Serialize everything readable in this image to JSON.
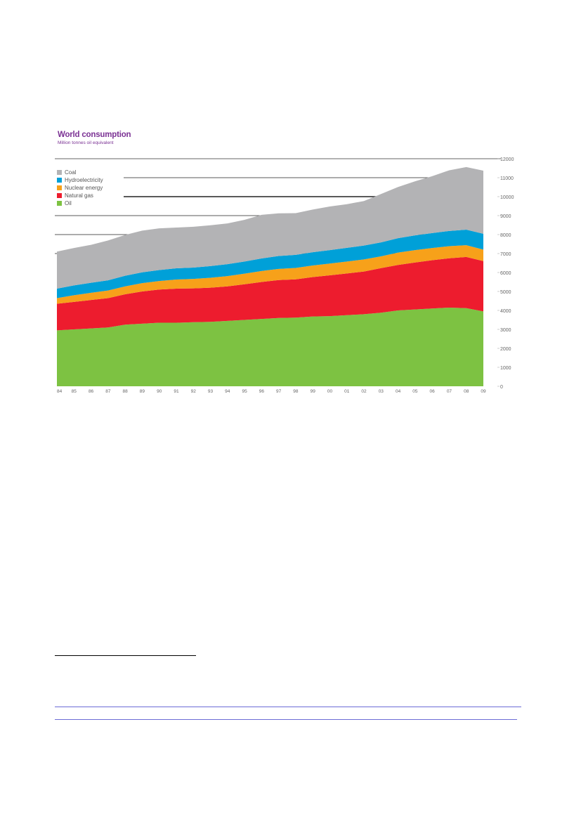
{
  "chart_data": {
    "type": "area",
    "stacked": true,
    "title": "World consumption",
    "subtitle": "Million tonnes oil equivalent",
    "x": [
      "84",
      "85",
      "86",
      "87",
      "88",
      "89",
      "90",
      "91",
      "92",
      "93",
      "94",
      "95",
      "96",
      "97",
      "98",
      "99",
      "00",
      "01",
      "02",
      "03",
      "04",
      "05",
      "06",
      "07",
      "08",
      "09"
    ],
    "ylim": [
      0,
      12000
    ],
    "yticks": [
      0,
      1000,
      2000,
      3000,
      4000,
      5000,
      6000,
      7000,
      8000,
      9000,
      10000,
      11000,
      12000
    ],
    "grid": "partial horizontal lines",
    "legend_position": "top-left",
    "series": [
      {
        "name": "Oil",
        "color": "#7dc242",
        "values": [
          2950,
          3000,
          3050,
          3100,
          3250,
          3300,
          3350,
          3350,
          3380,
          3400,
          3450,
          3500,
          3550,
          3600,
          3620,
          3680,
          3700,
          3750,
          3800,
          3880,
          4000,
          4050,
          4100,
          4150,
          4120,
          3950
        ]
      },
      {
        "name": "Natural gas",
        "color": "#ed1c2e",
        "values": [
          1400,
          1450,
          1500,
          1550,
          1600,
          1700,
          1750,
          1800,
          1780,
          1800,
          1820,
          1880,
          1950,
          2000,
          2020,
          2080,
          2150,
          2200,
          2250,
          2350,
          2400,
          2480,
          2550,
          2600,
          2700,
          2650
        ]
      },
      {
        "name": "Nuclear energy",
        "color": "#f7a11a",
        "values": [
          300,
          350,
          380,
          400,
          420,
          440,
          450,
          480,
          500,
          520,
          540,
          560,
          580,
          590,
          600,
          610,
          620,
          630,
          640,
          620,
          650,
          650,
          640,
          640,
          620,
          610
        ]
      },
      {
        "name": "Hydroelectricity",
        "color": "#00a0d8",
        "values": [
          500,
          520,
          530,
          540,
          560,
          570,
          580,
          590,
          600,
          620,
          630,
          640,
          660,
          680,
          690,
          700,
          710,
          720,
          730,
          740,
          760,
          780,
          790,
          800,
          820,
          830
        ]
      },
      {
        "name": "Coal",
        "color": "#b3b3b5",
        "values": [
          1950,
          1970,
          2000,
          2100,
          2150,
          2200,
          2200,
          2150,
          2150,
          2150,
          2150,
          2200,
          2300,
          2250,
          2200,
          2250,
          2300,
          2300,
          2350,
          2550,
          2700,
          2850,
          3000,
          3200,
          3300,
          3330
        ]
      }
    ]
  }
}
